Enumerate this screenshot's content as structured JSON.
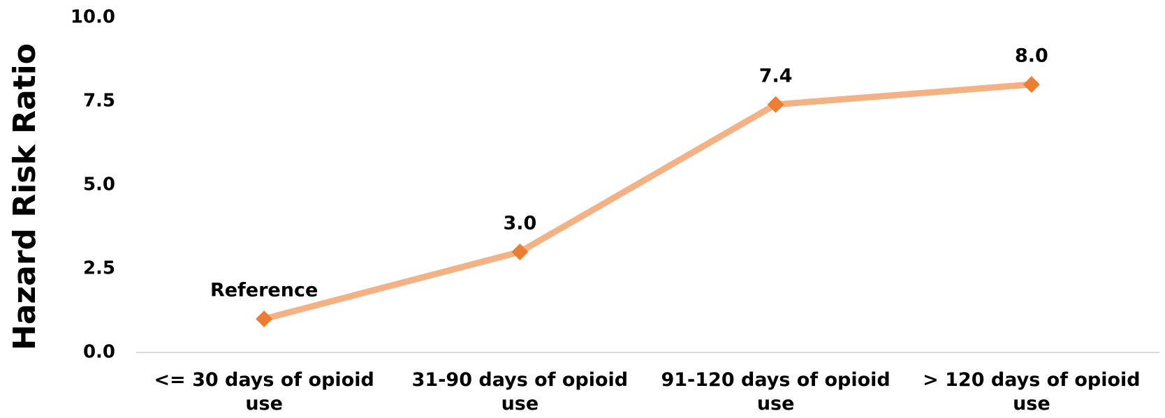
{
  "chart_data": {
    "type": "line",
    "y_label": "Hazard Risk Ratio",
    "categories": [
      "<= 30 days of opioid use",
      "31-90 days of opioid use",
      "91-120 days of opioid use",
      "> 120 days of opioid use"
    ],
    "series": [
      {
        "name": "Hazard Risk Ratio",
        "color": "#f4b183",
        "marker_color": "#ed7d31",
        "values": [
          1.0,
          3.0,
          7.4,
          8.0
        ],
        "value_labels": [
          "Reference",
          "3.0",
          "7.4",
          "8.0"
        ]
      }
    ],
    "ylim": [
      0,
      10
    ],
    "yticks": [
      {
        "value": 0,
        "label": "0.0"
      },
      {
        "value": 2.5,
        "label": "2.5"
      },
      {
        "value": 5,
        "label": "5.0"
      },
      {
        "value": 7.5,
        "label": "7.5"
      },
      {
        "value": 10,
        "label": "10.0"
      }
    ],
    "grid": false,
    "legend": false
  }
}
